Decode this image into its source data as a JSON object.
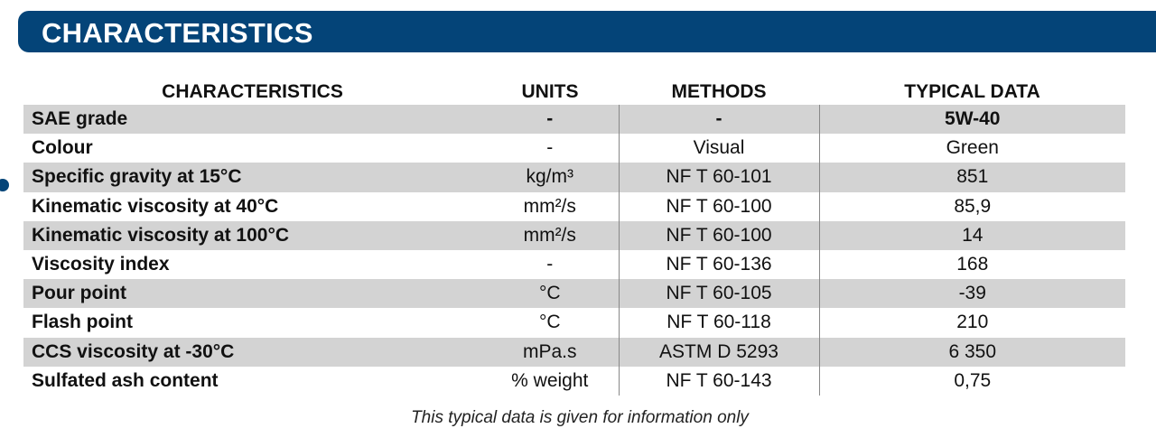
{
  "section_title": "CHARACTERISTICS",
  "table": {
    "headers": [
      "CHARACTERISTICS",
      "UNITS",
      "METHODS",
      "TYPICAL DATA"
    ],
    "rows": [
      [
        "SAE grade",
        "-",
        "-",
        "5W-40"
      ],
      [
        "Colour",
        "-",
        "Visual",
        "Green"
      ],
      [
        "Specific gravity at 15°C",
        "kg/m³",
        "NF T 60-101",
        "851"
      ],
      [
        "Kinematic viscosity at 40°C",
        "mm²/s",
        "NF T 60-100",
        "85,9"
      ],
      [
        "Kinematic viscosity at 100°C",
        "mm²/s",
        "NF T 60-100",
        "14"
      ],
      [
        "Viscosity index",
        "-",
        "NF T 60-136",
        "168"
      ],
      [
        "Pour point",
        "°C",
        "NF T 60-105",
        "-39"
      ],
      [
        "Flash point",
        "°C",
        "NF T 60-118",
        "210"
      ],
      [
        "CCS viscosity at -30°C",
        "mPa.s",
        "ASTM D 5293",
        "6 350"
      ],
      [
        "Sulfated ash content",
        "% weight",
        "NF T 60-143",
        "0,75"
      ]
    ]
  },
  "footnote": "This typical data is given for information only",
  "colors": {
    "banner": "#044478",
    "row_shade": "#d3d3d3"
  }
}
